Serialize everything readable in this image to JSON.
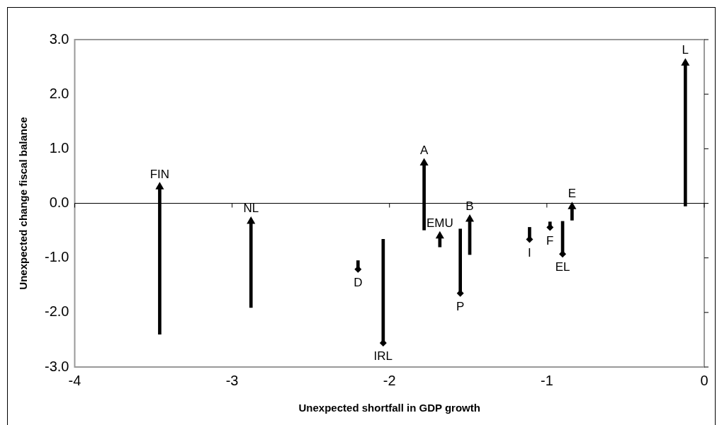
{
  "chart_data": {
    "type": "bar",
    "xlabel": "Unexpected shortfall in GDP growth",
    "ylabel": "Unexpected change fiscal balance",
    "grid": false,
    "ref_lines": [
      {
        "axis": "y",
        "value": 0,
        "color": "#000000"
      }
    ],
    "series": [
      {
        "base": [
          -2.4,
          -1.91,
          -1.05,
          -0.66,
          -0.49,
          -0.8,
          -0.47,
          -0.94,
          -0.44,
          -0.34,
          -0.33,
          -0.31,
          -0.05
        ],
        "color": "#000000",
        "x": [
          -3.46,
          -2.88,
          -2.2,
          -2.04,
          -1.78,
          -1.68,
          -1.55,
          -1.49,
          -1.11,
          -0.98,
          -0.9,
          -0.84,
          -0.12
        ],
        "values": [
          2.7,
          1.58,
          -0.16,
          -1.9,
          1.23,
          0.2,
          -1.18,
          0.65,
          -0.22,
          -0.1,
          -0.6,
          0.25,
          2.62
        ]
      },
      {
        "type": "scatter",
        "marker": "triangle",
        "color": "#000000",
        "x": [
          -3.46,
          -2.88,
          -1.78,
          -1.68,
          -1.49,
          -0.84,
          -0.12
        ],
        "values": [
          0.3,
          -0.33,
          0.74,
          -0.6,
          -0.29,
          -0.06,
          2.57
        ]
      },
      {
        "type": "scatter",
        "marker": "diamond",
        "color": "#000000",
        "x": [
          -2.2,
          -2.04,
          -1.55,
          -1.11,
          -0.98,
          -0.9
        ],
        "values": [
          -1.21,
          -2.56,
          -1.65,
          -0.66,
          -0.44,
          -0.93
        ]
      }
    ],
    "xlim": [
      -4,
      0
    ],
    "xticks": [
      -4,
      -3,
      -2,
      -1,
      0
    ],
    "ylim": [
      -3,
      3
    ],
    "yticks": [
      {
        "value": -3,
        "label": "-3.0"
      },
      {
        "value": -2,
        "label": "-2.0"
      },
      {
        "value": -1,
        "label": "-1.0"
      },
      {
        "value": 0,
        "label": "0.0"
      },
      {
        "value": 1,
        "label": "1.0"
      },
      {
        "value": 2,
        "label": "2.0"
      },
      {
        "value": 3,
        "label": "3.0"
      }
    ],
    "annotations": [
      {
        "text": "FIN",
        "x": -3.46,
        "y": 0.3
      },
      {
        "text": "NL",
        "x": -2.88,
        "y": -0.33
      },
      {
        "text": "D",
        "x": -2.2,
        "y": -1.21
      },
      {
        "text": "IRL",
        "x": -2.04,
        "y": -2.56
      },
      {
        "text": "A",
        "x": -1.78,
        "y": 0.74
      },
      {
        "text": "EMU",
        "x": -1.68,
        "y": -0.6
      },
      {
        "text": "P",
        "x": -1.55,
        "y": -1.65
      },
      {
        "text": "B",
        "x": -1.49,
        "y": -0.29
      },
      {
        "text": "I",
        "x": -1.11,
        "y": -0.66
      },
      {
        "text": "F",
        "x": -0.98,
        "y": -0.44
      },
      {
        "text": "EL",
        "x": -0.9,
        "y": -0.93
      },
      {
        "text": "E",
        "x": -0.84,
        "y": -0.06
      },
      {
        "text": "L",
        "x": -0.12,
        "y": 2.57
      }
    ]
  }
}
